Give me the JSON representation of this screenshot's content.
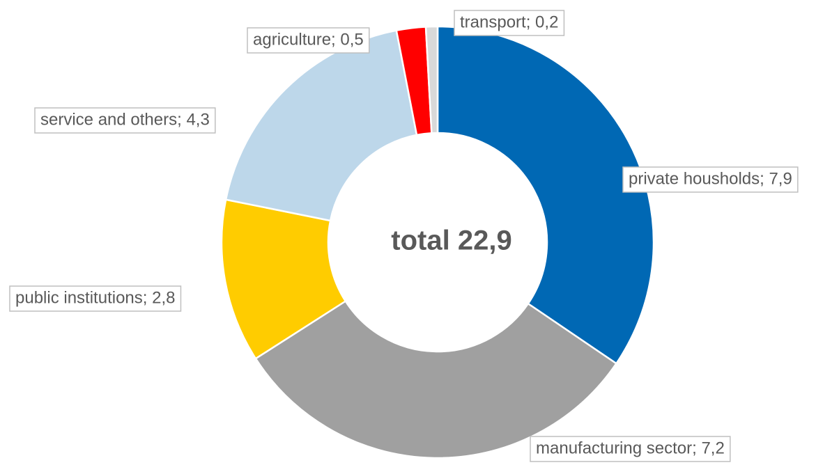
{
  "chart_data": {
    "type": "pie",
    "donut": true,
    "center_label": "total 22,9",
    "values": [
      7.9,
      7.2,
      2.8,
      4.3,
      0.5,
      0.2
    ],
    "value_labels": [
      "private housholds; 7,9",
      "manufacturing sector; 7,2",
      "public institutions; 2,8",
      "service and others; 4,3",
      "agriculture; 0,5",
      "transport; 0,2"
    ],
    "colors": [
      "#0068b4",
      "#a0a0a0",
      "#ffcc00",
      "#bdd7ea",
      "#ff0000",
      "#d9d9d9"
    ]
  }
}
